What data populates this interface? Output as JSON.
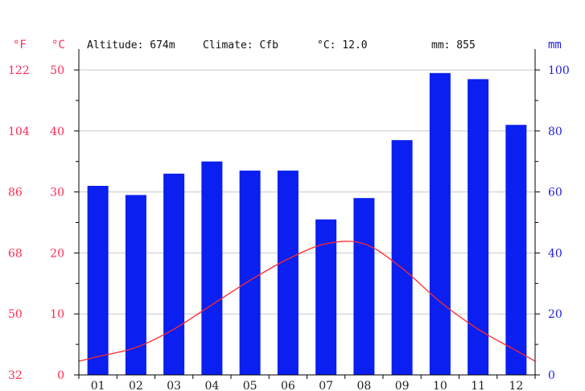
{
  "header": {
    "altitude": "Altitude: 674m",
    "climate": "Climate: Cfb",
    "temp": "°C: 12.0",
    "precip": "mm: 855"
  },
  "chart_data": {
    "type": "bar",
    "categories": [
      "01",
      "02",
      "03",
      "04",
      "05",
      "06",
      "07",
      "08",
      "09",
      "10",
      "11",
      "12"
    ],
    "series": [
      {
        "values": [
          62,
          59,
          66,
          70,
          67,
          67,
          51,
          58,
          77,
          99,
          97,
          82
        ]
      },
      {
        "type": "line",
        "values": [
          3.0,
          4.5,
          7.5,
          11.5,
          15.5,
          19.0,
          21.5,
          21.5,
          17.5,
          12.0,
          7.5,
          4.0
        ]
      }
    ],
    "axes": {
      "left_fahrenheit": {
        "unit": "°F",
        "ticks": [
          "122",
          "104",
          "86",
          "68",
          "50",
          "32"
        ]
      },
      "left_celsius": {
        "unit": "°C",
        "ticks": [
          "50",
          "40",
          "30",
          "20",
          "10",
          "0"
        ],
        "ylim": [
          0,
          50
        ]
      },
      "right_precip": {
        "unit": "mm",
        "ticks": [
          "100",
          "80",
          "60",
          "40",
          "20",
          "0"
        ],
        "ylim": [
          0,
          100
        ]
      }
    },
    "grid": true,
    "colors": {
      "bars": "#0a1ff0",
      "line": "#ff2a2a",
      "temp_axis": "#ff2a55",
      "precip_axis": "#1f1fe6"
    }
  }
}
